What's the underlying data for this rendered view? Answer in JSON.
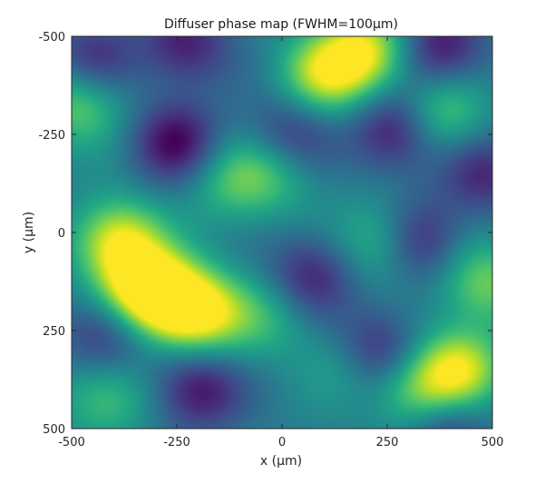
{
  "chart_data": {
    "type": "heatmap",
    "title": "Diffuser phase map (FWHM=100μm)",
    "xlabel": "x (μm)",
    "ylabel": "y (μm)",
    "xlim": [
      -500,
      500
    ],
    "ylim": [
      -500,
      500
    ],
    "y_direction": "reversed",
    "xticks": [
      -500,
      -250,
      0,
      250,
      500
    ],
    "yticks": [
      -500,
      -250,
      0,
      250,
      500
    ],
    "xtick_labels": [
      "-500",
      "-250",
      "0",
      "250",
      "500"
    ],
    "ytick_labels": [
      "-500",
      "-250",
      "0",
      "250",
      "500"
    ],
    "colormap": "viridis",
    "grid": false,
    "value_range": [
      0,
      1
    ],
    "hotspots": [
      {
        "x": -390,
        "y": 20,
        "value": 0.95
      },
      {
        "x": -330,
        "y": 140,
        "value": 1.0
      },
      {
        "x": -260,
        "y": 180,
        "value": 0.92
      },
      {
        "x": -180,
        "y": 210,
        "value": 0.85
      },
      {
        "x": 200,
        "y": -460,
        "value": 0.95
      },
      {
        "x": 100,
        "y": -400,
        "value": 0.88
      },
      {
        "x": 420,
        "y": 350,
        "value": 0.95
      },
      {
        "x": 330,
        "y": 420,
        "value": 0.88
      },
      {
        "x": 380,
        "y": -300,
        "value": 0.78
      },
      {
        "x": -480,
        "y": -330,
        "value": 0.78
      },
      {
        "x": -420,
        "y": 420,
        "value": 0.72
      },
      {
        "x": 240,
        "y": 20,
        "value": 0.76
      },
      {
        "x": 480,
        "y": 130,
        "value": 0.78
      },
      {
        "x": -20,
        "y": -150,
        "value": 0.65
      },
      {
        "x": -30,
        "y": 220,
        "value": 0.62
      },
      {
        "x": -120,
        "y": -130,
        "value": 0.68
      },
      {
        "x": 160,
        "y": 330,
        "value": 0.64
      }
    ],
    "coldspots": [
      {
        "x": -250,
        "y": -230,
        "value": 0.02
      },
      {
        "x": 270,
        "y": -260,
        "value": 0.02
      },
      {
        "x": 380,
        "y": -470,
        "value": 0.04
      },
      {
        "x": -230,
        "y": -480,
        "value": 0.08
      },
      {
        "x": -450,
        "y": -440,
        "value": 0.12
      },
      {
        "x": 320,
        "y": 20,
        "value": 0.04
      },
      {
        "x": 70,
        "y": 110,
        "value": 0.1
      },
      {
        "x": 220,
        "y": 300,
        "value": 0.03
      },
      {
        "x": -200,
        "y": 400,
        "value": 0.04
      },
      {
        "x": 380,
        "y": 480,
        "value": 0.03
      },
      {
        "x": -420,
        "y": 260,
        "value": 0.12
      },
      {
        "x": 20,
        "y": -250,
        "value": 0.14
      },
      {
        "x": 480,
        "y": -150,
        "value": 0.12
      }
    ]
  }
}
